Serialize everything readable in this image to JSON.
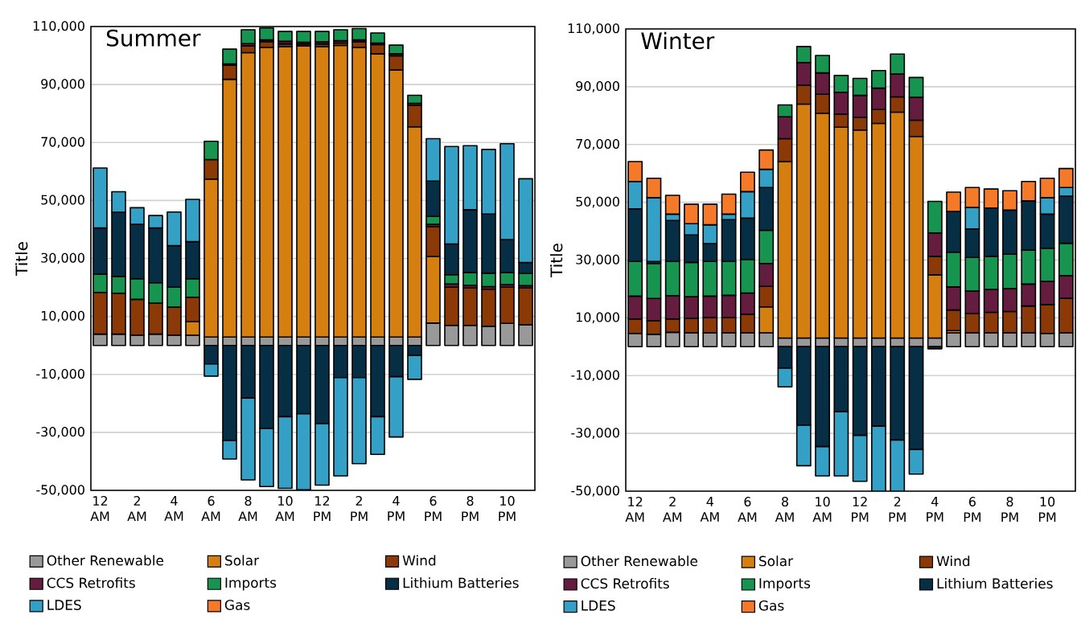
{
  "chart_data": [
    {
      "type": "bar",
      "title": "Summer",
      "ylabel": "Title",
      "stacked": true,
      "grid": "y",
      "legend": "bottom",
      "categories": [
        "12 AM",
        null,
        "2 AM",
        null,
        "4 AM",
        null,
        "6 AM",
        null,
        "8 AM",
        null,
        "10 AM",
        null,
        "12 PM",
        null,
        "2 PM",
        null,
        "4 PM",
        null,
        "6 PM",
        null,
        "8 PM",
        null,
        "10 PM",
        null
      ],
      "ylim": [
        -50000,
        110000
      ],
      "yticks": [
        {
          "value": -50000,
          "label": "-50,000"
        },
        {
          "value": -30000,
          "label": "-30,000"
        },
        {
          "value": -10000,
          "label": "-10,000"
        },
        {
          "value": 10000,
          "label": "10,000"
        },
        {
          "value": 30000,
          "label": "30,000"
        },
        {
          "value": 50000,
          "label": "50,000"
        },
        {
          "value": 70000,
          "label": "70,000"
        },
        {
          "value": 90000,
          "label": "90,000"
        },
        {
          "value": 110000,
          "label": "110,000"
        }
      ],
      "series": [
        {
          "name": "Other Renewable",
          "color": "#999999",
          "values": [
            3900,
            3900,
            3500,
            3900,
            3500,
            3500,
            2900,
            2900,
            2900,
            2900,
            2900,
            2900,
            2900,
            2900,
            2900,
            2900,
            2900,
            2900,
            7700,
            6900,
            6900,
            6600,
            7600,
            7100
          ]
        },
        {
          "name": "Solar",
          "color": "#d47f10",
          "values": [
            0,
            0,
            0,
            0,
            0,
            4700,
            54500,
            88900,
            98100,
            99900,
            100200,
            100400,
            100200,
            100600,
            99900,
            97700,
            92100,
            72500,
            23000,
            0,
            0,
            0,
            0,
            0
          ]
        },
        {
          "name": "Wind",
          "color": "#8b3a07",
          "values": [
            14400,
            14100,
            12400,
            10700,
            9700,
            8400,
            6700,
            4800,
            2300,
            1900,
            900,
            700,
            900,
            800,
            1900,
            3200,
            4900,
            7400,
            10300,
            13200,
            12900,
            12800,
            12500,
            12700
          ]
        },
        {
          "name": "CCS Retrofits",
          "color": "#641d3f",
          "values": [
            0,
            0,
            0,
            0,
            0,
            0,
            0,
            500,
            800,
            700,
            900,
            600,
            700,
            800,
            700,
            500,
            700,
            700,
            800,
            1100,
            900,
            900,
            900,
            800
          ]
        },
        {
          "name": "Imports",
          "color": "#17944f",
          "values": [
            6300,
            5800,
            7100,
            7000,
            6900,
            6400,
            6300,
            5100,
            4800,
            4100,
            3400,
            3700,
            3600,
            3800,
            3900,
            3500,
            3000,
            2800,
            2700,
            3200,
            4400,
            4600,
            4100,
            4200
          ]
        },
        {
          "name": "Lithium Batteries",
          "color": "#062f46",
          "values": [
            15900,
            22100,
            18800,
            18900,
            14300,
            12800,
            -6400,
            -32800,
            -18200,
            -28600,
            -24600,
            -23600,
            -27000,
            -11100,
            -11100,
            -24600,
            -10800,
            -3500,
            12200,
            10600,
            21700,
            20400,
            11400,
            3800
          ]
        },
        {
          "name": "LDES",
          "color": "#35a0c6",
          "values": [
            20700,
            7100,
            5700,
            4300,
            11600,
            14600,
            -4200,
            -6400,
            -28200,
            -20100,
            -24700,
            -26200,
            -21200,
            -33900,
            -29700,
            -13000,
            -20800,
            -8200,
            14600,
            33600,
            22100,
            22300,
            33100,
            28900
          ]
        },
        {
          "name": "Gas",
          "color": "#f47a2a",
          "values": [
            0,
            0,
            0,
            0,
            0,
            0,
            0,
            0,
            0,
            0,
            0,
            0,
            0,
            0,
            0,
            0,
            0,
            0,
            0,
            0,
            0,
            0,
            0,
            0
          ]
        }
      ]
    },
    {
      "type": "bar",
      "title": "Winter",
      "ylabel": "Title",
      "stacked": true,
      "grid": "y",
      "legend": "bottom",
      "categories": [
        "12 AM",
        null,
        "2 AM",
        null,
        "4 AM",
        null,
        "6 AM",
        null,
        "8 AM",
        null,
        "10 AM",
        null,
        "12 PM",
        null,
        "2 PM",
        null,
        "4 PM",
        null,
        "6 PM",
        null,
        "8 PM",
        null,
        "10 PM",
        null
      ],
      "ylim": [
        -50000,
        110000
      ],
      "yticks": [
        {
          "value": -50000,
          "label": "-50,000"
        },
        {
          "value": -30000,
          "label": "-30,000"
        },
        {
          "value": -10000,
          "label": "-10,000"
        },
        {
          "value": 10000,
          "label": "10,000"
        },
        {
          "value": 30000,
          "label": "30,000"
        },
        {
          "value": 50000,
          "label": "50,000"
        },
        {
          "value": 70000,
          "label": "70,000"
        },
        {
          "value": 90000,
          "label": "90,000"
        },
        {
          "value": 110000,
          "label": "110,000"
        }
      ],
      "series": [
        {
          "name": "Other Renewable",
          "color": "#999999",
          "values": [
            4600,
            4300,
            5000,
            4800,
            4800,
            4800,
            4800,
            4800,
            3000,
            3000,
            3000,
            3000,
            3000,
            3000,
            3000,
            3000,
            3000,
            4800,
            4800,
            4800,
            4800,
            4800,
            4600,
            4800
          ]
        },
        {
          "name": "Solar",
          "color": "#d47f10",
          "values": [
            0,
            0,
            0,
            0,
            0,
            0,
            0,
            9000,
            61100,
            81000,
            77800,
            73000,
            72000,
            74300,
            78200,
            69800,
            21900,
            800,
            0,
            0,
            0,
            0,
            0,
            0
          ]
        },
        {
          "name": "Wind",
          "color": "#8b3a07",
          "values": [
            5000,
            4700,
            4600,
            5000,
            5300,
            5300,
            6400,
            7100,
            7900,
            6500,
            6600,
            4500,
            4400,
            4800,
            5300,
            5600,
            6400,
            7100,
            6700,
            7100,
            7400,
            9300,
            10000,
            12000
          ]
        },
        {
          "name": "CCS Retrofits",
          "color": "#641d3f",
          "values": [
            7900,
            7700,
            8100,
            7500,
            7400,
            7700,
            7400,
            7900,
            7600,
            7900,
            7400,
            7600,
            7600,
            7400,
            7900,
            7900,
            8100,
            8000,
            7800,
            7900,
            7900,
            7600,
            8000,
            7800
          ]
        },
        {
          "name": "Imports",
          "color": "#17944f",
          "values": [
            12000,
            12100,
            11800,
            11900,
            12000,
            11700,
            11600,
            11500,
            4100,
            5500,
            6000,
            5800,
            5900,
            6100,
            6900,
            6900,
            10900,
            12000,
            11600,
            11500,
            11900,
            11700,
            11500,
            11200
          ]
        },
        {
          "name": "Lithium Batteries",
          "color": "#062f46",
          "values": [
            18200,
            700,
            14200,
            9500,
            6200,
            14500,
            14300,
            14800,
            -7400,
            -27200,
            -34600,
            -22500,
            -30700,
            -27500,
            -32300,
            -35600,
            -700,
            14100,
            9900,
            16700,
            15300,
            17100,
            11800,
            16300
          ]
        },
        {
          "name": "LDES",
          "color": "#35a0c6",
          "values": [
            9500,
            22100,
            2200,
            3900,
            6500,
            1900,
            9200,
            6300,
            -6500,
            -14000,
            -10100,
            -22200,
            -15900,
            -22500,
            -17700,
            -8500,
            0,
            0,
            7400,
            0,
            0,
            0,
            5700,
            3000
          ]
        },
        {
          "name": "Gas",
          "color": "#f47a2a",
          "values": [
            6900,
            6700,
            6500,
            6700,
            7100,
            6900,
            6700,
            6700,
            0,
            0,
            0,
            0,
            0,
            0,
            0,
            0,
            0,
            6700,
            6900,
            6600,
            6700,
            6700,
            6700,
            6600
          ]
        }
      ]
    }
  ]
}
